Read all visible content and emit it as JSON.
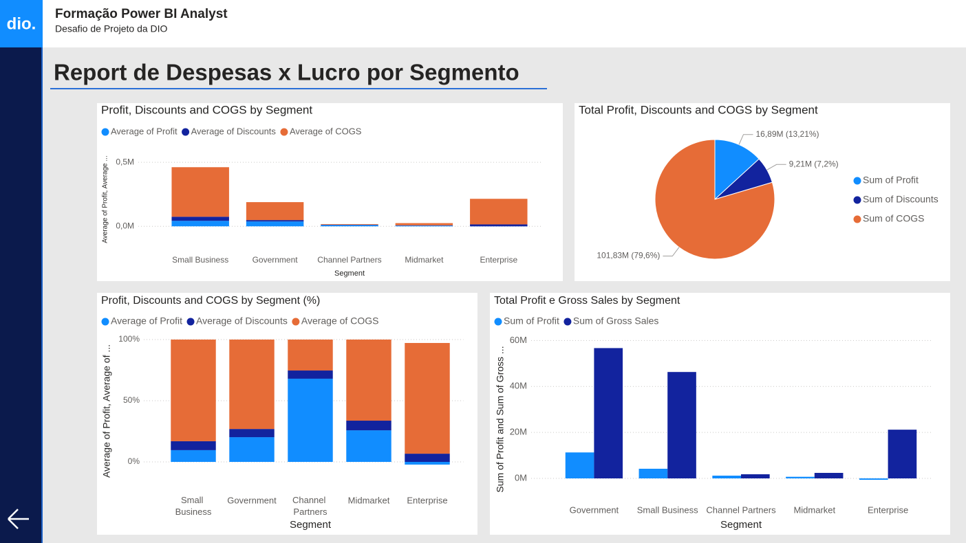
{
  "header": {
    "logo": "dio.",
    "title": "Formação Power BI Analyst",
    "subtitle": "Desafio de Projeto da DIO"
  },
  "page_title": "Report de Despesas x Lucro por Segmento",
  "chart_data": [
    {
      "type": "stacked_bar",
      "title": "Profit, Discounts and COGS by Segment",
      "x_label": "Segment",
      "y_label": "Average of Profit, Average ...",
      "categories": [
        "Small Business",
        "Government",
        "Channel Partners",
        "Midmarket",
        "Enterprise"
      ],
      "series": [
        {
          "name": "Average of Profit",
          "color": "#118dff",
          "values": [
            43000,
            38000,
            10000,
            5000,
            -1000
          ]
        },
        {
          "name": "Average of Discounts",
          "color": "#12239e",
          "values": [
            32000,
            11000,
            2000,
            3000,
            15000
          ]
        },
        {
          "name": "Average of COGS",
          "color": "#e66c37",
          "values": [
            387000,
            140000,
            5000,
            17000,
            200000
          ]
        }
      ],
      "ylim": [
        -20000,
        560000
      ],
      "yticks": [
        {
          "value": 0,
          "label": "0,0M"
        },
        {
          "value": 500000,
          "label": "0,5M"
        }
      ],
      "grid": true
    },
    {
      "type": "pie",
      "title": "Total Profit, Discounts and COGS by Segment",
      "categories": [
        "Sum of Profit",
        "Sum of Discounts",
        "Sum of COGS"
      ],
      "colors": [
        "#118dff",
        "#12239e",
        "#e66c37"
      ],
      "values": [
        16.89,
        9.21,
        101.83
      ],
      "value_labels": [
        "16,89M (13,21%)",
        "9,21M (7,2%)",
        "101,83M (79,6%)"
      ]
    },
    {
      "type": "stacked_bar",
      "title": "Profit, Discounts and COGS by Segment (%)",
      "x_label": "Segment",
      "y_label": "Average of Profit, Average of ...",
      "categories": [
        "Small Business",
        "Government",
        "Channel Partners",
        "Midmarket",
        "Enterprise"
      ],
      "series": [
        {
          "name": "Average of Profit",
          "color": "#118dff",
          "values": [
            9.6,
            20.2,
            68,
            25.8,
            -2.2
          ]
        },
        {
          "name": "Average of Discounts",
          "color": "#12239e",
          "values": [
            7.3,
            6.7,
            6.7,
            7.9,
            6.7
          ]
        },
        {
          "name": "Average of COGS",
          "color": "#e66c37",
          "values": [
            83.1,
            73.1,
            25.3,
            66.3,
            90.5
          ]
        }
      ],
      "ylim": [
        -10,
        100
      ],
      "yticks": [
        {
          "value": 0,
          "label": "0%"
        },
        {
          "value": 50,
          "label": "50%"
        },
        {
          "value": 100,
          "label": "100%"
        }
      ],
      "grid": true
    },
    {
      "type": "grouped_bar",
      "title": "Total Profit e Gross Sales by Segment",
      "x_label": "Segment",
      "y_label": "Sum of Profit and Sum of Gross ...",
      "categories": [
        "Government",
        "Small Business",
        "Channel Partners",
        "Midmarket",
        "Enterprise"
      ],
      "series": [
        {
          "name": "Sum of Profit",
          "color": "#118dff",
          "values": [
            11.3,
            4.2,
            1.2,
            0.7,
            -0.6
          ]
        },
        {
          "name": "Sum of Gross Sales",
          "color": "#12239e",
          "values": [
            56.7,
            46.3,
            1.8,
            2.4,
            21.2
          ]
        }
      ],
      "ylim": [
        -2,
        62
      ],
      "yticks": [
        {
          "value": 0,
          "label": "0M"
        },
        {
          "value": 20,
          "label": "20M"
        },
        {
          "value": 40,
          "label": "40M"
        },
        {
          "value": 60,
          "label": "60M"
        }
      ],
      "grid": true
    }
  ]
}
